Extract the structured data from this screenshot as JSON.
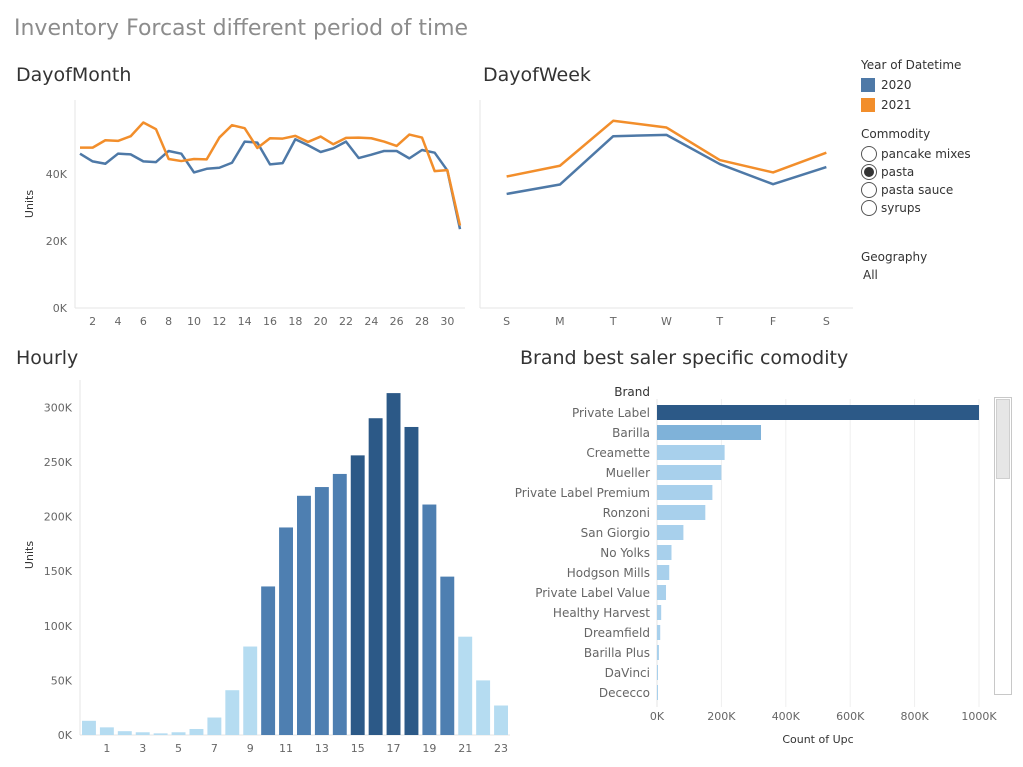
{
  "dashboard": {
    "title": "Inventory Forcast different period of time"
  },
  "colors": {
    "series_2020": "#4e79a7",
    "series_2021": "#f28e2b",
    "bar_light": "#b5dcf1",
    "bar_mid": "#4e7fb1",
    "bar_dark": "#2c5987",
    "brand_dark": "#2c5987",
    "brand_mid": "#7fb2d9",
    "brand_light": "#a8d0ec"
  },
  "legend": {
    "year_title": "Year of Datetime",
    "years": [
      {
        "label": "2020",
        "color": "#4e79a7"
      },
      {
        "label": "2021",
        "color": "#f28e2b"
      }
    ],
    "commodity_title": "Commodity",
    "commodities": [
      {
        "label": "pancake mixes",
        "selected": false
      },
      {
        "label": "pasta",
        "selected": true
      },
      {
        "label": "pasta sauce",
        "selected": false
      },
      {
        "label": "syrups",
        "selected": false
      }
    ],
    "geography_title": "Geography",
    "geography_value": "All"
  },
  "chart_data": [
    {
      "id": "day_of_month",
      "type": "line",
      "title": "DayofMonth",
      "ylabel": "Units",
      "ylim": [
        0,
        62000
      ],
      "yticks": [
        0,
        20000,
        40000
      ],
      "ytick_labels": [
        "0K",
        "20K",
        "40K"
      ],
      "x": [
        1,
        2,
        3,
        4,
        5,
        6,
        7,
        8,
        9,
        10,
        11,
        12,
        13,
        14,
        15,
        16,
        17,
        18,
        19,
        20,
        21,
        22,
        23,
        24,
        25,
        26,
        27,
        28,
        29,
        30,
        31
      ],
      "xtick_labels": [
        "2",
        "4",
        "6",
        "8",
        "10",
        "12",
        "14",
        "16",
        "18",
        "20",
        "22",
        "24",
        "26",
        "28",
        "30"
      ],
      "xticks": [
        2,
        4,
        6,
        8,
        10,
        12,
        14,
        16,
        18,
        20,
        22,
        24,
        26,
        28,
        30
      ],
      "series": [
        {
          "name": "2020",
          "values": [
            46000,
            43700,
            43000,
            46000,
            45800,
            43700,
            43500,
            46800,
            46000,
            40400,
            41500,
            41800,
            43300,
            49600,
            49300,
            42800,
            43200,
            50300,
            48500,
            46500,
            47600,
            49600,
            44700,
            45700,
            46800,
            46800,
            44600,
            47100,
            46300,
            41000,
            23500
          ]
        },
        {
          "name": "2021",
          "values": [
            47800,
            47800,
            50000,
            49800,
            51200,
            55300,
            53300,
            44400,
            43800,
            44400,
            44300,
            50800,
            54500,
            53600,
            47700,
            50600,
            50500,
            51300,
            49500,
            51100,
            48800,
            50700,
            50800,
            50600,
            49600,
            48300,
            51700,
            50800,
            40800,
            41100,
            24600
          ]
        }
      ]
    },
    {
      "id": "day_of_week",
      "type": "line",
      "title": "DayofWeek",
      "ylim": [
        0,
        62000
      ],
      "categories": [
        "S",
        "M",
        "T",
        "W",
        "T",
        "F",
        "S"
      ],
      "series": [
        {
          "name": "2020",
          "values": [
            34000,
            36800,
            51200,
            51600,
            42900,
            36900,
            42000
          ]
        },
        {
          "name": "2021",
          "values": [
            39200,
            42400,
            55800,
            53800,
            44100,
            40400,
            46300
          ]
        }
      ]
    },
    {
      "id": "hourly",
      "type": "bar",
      "title": "Hourly",
      "ylabel": "Units",
      "ylim": [
        0,
        325000
      ],
      "yticks": [
        0,
        50000,
        100000,
        150000,
        200000,
        250000,
        300000
      ],
      "ytick_labels": [
        "0K",
        "50K",
        "100K",
        "150K",
        "200K",
        "250K",
        "300K"
      ],
      "categories": [
        0,
        1,
        2,
        3,
        4,
        5,
        6,
        7,
        8,
        9,
        10,
        11,
        12,
        13,
        14,
        15,
        16,
        17,
        18,
        19,
        20,
        21,
        22,
        23
      ],
      "xtick_labels": [
        "1",
        "3",
        "5",
        "7",
        "9",
        "11",
        "13",
        "15",
        "17",
        "19",
        "21",
        "23"
      ],
      "values": [
        13000,
        7000,
        3500,
        2500,
        1500,
        2500,
        5500,
        16000,
        41000,
        81000,
        136000,
        190000,
        219000,
        227000,
        239000,
        256000,
        290000,
        313000,
        282000,
        211000,
        145000,
        90000,
        50000,
        27000
      ]
    },
    {
      "id": "brand",
      "type": "bar",
      "orientation": "horizontal",
      "title": "Brand best saler specific comodity",
      "row_header": "Brand",
      "xlabel": "Count of Upc",
      "xlim": [
        0,
        1000000
      ],
      "xticks": [
        0,
        200000,
        400000,
        600000,
        800000,
        1000000
      ],
      "xtick_labels": [
        "0K",
        "200K",
        "400K",
        "600K",
        "800K",
        "1000K"
      ],
      "categories": [
        "Private Label",
        "Barilla",
        "Creamette",
        "Mueller",
        "Private Label Premium",
        "Ronzoni",
        "San Giorgio",
        "No Yolks",
        "Hodgson Mills",
        "Private Label Value",
        "Healthy Harvest",
        "Dreamfield",
        "Barilla Plus",
        "DaVinci",
        "Dececco"
      ],
      "values": [
        1000000,
        323000,
        210000,
        200000,
        172000,
        150000,
        82000,
        45000,
        38000,
        28000,
        13000,
        10000,
        6000,
        3000,
        2500
      ]
    }
  ]
}
